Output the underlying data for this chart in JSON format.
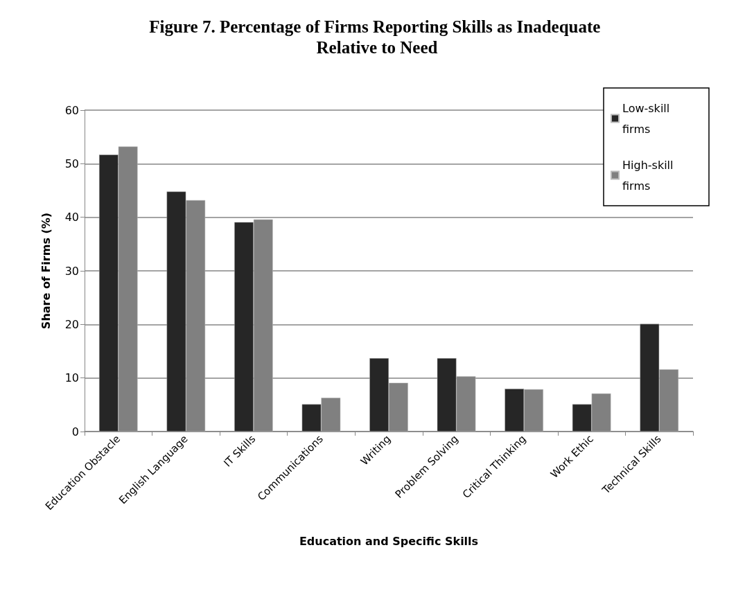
{
  "chart_data": {
    "type": "bar",
    "title": "Figure 7. Percentage of Firms Reporting Skills as Inadequate Relative to Need",
    "xlabel": "Education and Specific Skills",
    "ylabel": "Share of Firms (%)",
    "categories": [
      "Education Obstacle",
      "English Language",
      "IT Skills",
      "Communications",
      "Writing",
      "Problem Solving",
      "Critical Thinking",
      "Work Ethic",
      "Technical Skills"
    ],
    "series": [
      {
        "name": "Low-skill firms",
        "color": "#262626",
        "values": [
          51.7,
          44.8,
          39.1,
          5.1,
          13.7,
          13.7,
          8.0,
          5.1,
          20.1
        ]
      },
      {
        "name": "High-skill firms",
        "color": "#808080",
        "values": [
          53.2,
          43.2,
          39.6,
          6.3,
          9.1,
          10.3,
          7.9,
          7.1,
          11.6
        ]
      }
    ],
    "ylim": [
      0,
      60
    ],
    "yticks": [
      0,
      10,
      20,
      30,
      40,
      50,
      60
    ],
    "grid": "y",
    "legend": "top right"
  }
}
